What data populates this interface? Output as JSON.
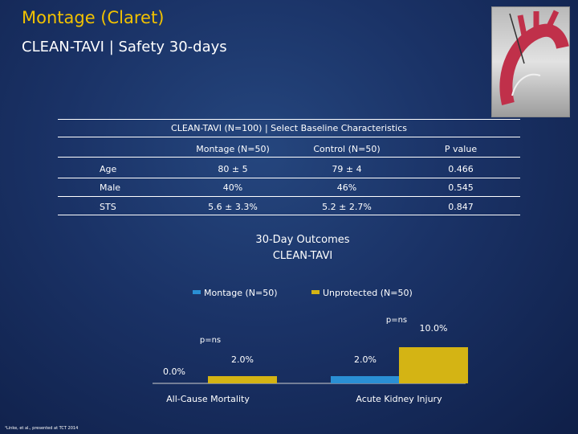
{
  "header": {
    "title": "Montage (Claret)",
    "subtitle": "CLEAN-TAVI | Safety 30-days"
  },
  "table": {
    "caption": "CLEAN-TAVI (N=100) | Select Baseline Characteristics",
    "columns": [
      "",
      "Montage (N=50)",
      "Control (N=50)",
      "P value"
    ],
    "rows": [
      [
        "Age",
        "80 ± 5",
        "79 ± 4",
        "0.466"
      ],
      [
        "Male",
        "40%",
        "46%",
        "0.545"
      ],
      [
        "STS",
        "5.6 ± 3.3%",
        "5.2 ± 2.7%",
        "0.847"
      ]
    ]
  },
  "chart_data": {
    "type": "bar",
    "title": "30-Day Outcomes",
    "subtitle": "CLEAN-TAVI",
    "categories": [
      "All-Cause Mortality",
      "Acute Kidney Injury"
    ],
    "series": [
      {
        "name": "Montage (N=50)",
        "values": [
          0.0,
          2.0
        ],
        "labels": [
          "0.0%",
          "2.0%"
        ],
        "color": "#2a8fd4"
      },
      {
        "name": "Unprotected (N=50)",
        "values": [
          2.0,
          10.0
        ],
        "labels": [
          "2.0%",
          "10.0%"
        ],
        "color": "#d4b414"
      }
    ],
    "annotations": [
      "p=ns",
      "p=ns"
    ],
    "legend": "top",
    "ylim": [
      0,
      10
    ]
  },
  "footnote": "¹Linke, et al., presented at TCT 2014"
}
